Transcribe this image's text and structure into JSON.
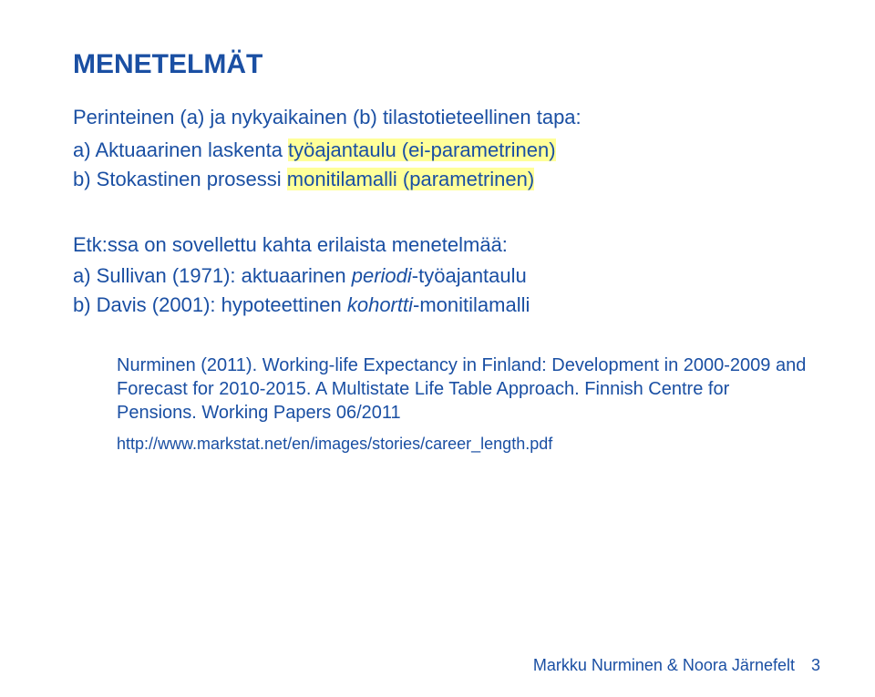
{
  "colors": {
    "title": "#1a4fa3",
    "body": "#1a4fa3",
    "footer": "#1a4fa3",
    "highlight_bg": "#ffff99",
    "background": "#ffffff"
  },
  "title": "MENETELMÄT",
  "intro": "Perinteinen (a) ja nykyaikainen (b) tilastotieteellinen tapa:",
  "opt_a_prefix": "a) Aktuaarinen laskenta ",
  "opt_a_hl": "työajantaulu (ei-parametrinen)",
  "opt_b_prefix": "b) Stokastinen prosessi ",
  "opt_b_hl": "monitilamalli (parametrinen)",
  "sub_intro": "Etk:ssa on sovellettu kahta erilaista menetelmää:",
  "sub_a_prefix": "a) Sullivan (1971): aktuaarinen ",
  "sub_a_ital": "periodi",
  "sub_a_suffix": "-työajantaulu",
  "sub_b_prefix": "b) Davis (2001): hypoteettinen ",
  "sub_b_ital": "kohortti",
  "sub_b_suffix": "-monitilamalli",
  "ref_line1": "Nurminen (2011). Working-life Expectancy in Finland: Development in 2000-2009 and Forecast for 2010-2015. A Multistate Life Table Approach. Finnish Centre for Pensions. Working Papers 06/2011",
  "ref_link": "http://www.markstat.net/en/images/stories/career_length.pdf",
  "footer_text": "Markku Nurminen & Noora Järnefelt",
  "footer_page": "3"
}
